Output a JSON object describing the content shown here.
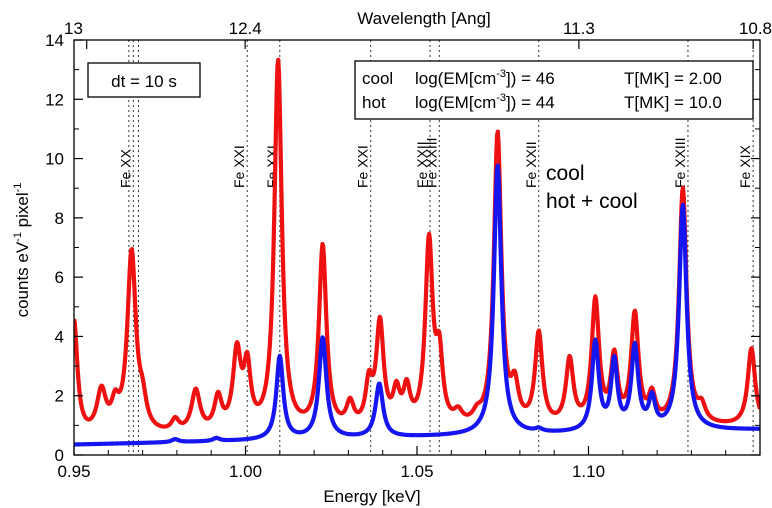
{
  "chart_data": {
    "type": "line",
    "xlabel": "Energy [keV]",
    "ylabel": "counts eV",
    "ylabel_sup1": "-1",
    "ylabel_mid": " pixel",
    "ylabel_sup2": "-1",
    "top_axis_label": "Wavelength [Ang]",
    "xlim": [
      0.95,
      1.15
    ],
    "ylim": [
      0,
      14
    ],
    "x_ticks": [
      0.95,
      1.0,
      1.05,
      1.1
    ],
    "x_tick_labels": [
      "0.95",
      "1.00",
      "1.05",
      "1.10"
    ],
    "y_ticks": [
      0,
      2,
      4,
      6,
      8,
      10,
      12,
      14
    ],
    "y_tick_labels": [
      "0",
      "2",
      "4",
      "6",
      "8",
      "10",
      "12",
      "14"
    ],
    "top_ticks": [
      {
        "label": "13",
        "energy": 0.9537
      },
      {
        "label": "12.4",
        "energy": 0.9999
      },
      {
        "label": "11.3",
        "energy": 1.0972
      },
      {
        "label": "10.8",
        "energy": 1.148
      }
    ],
    "annotation_box": "dt = 10 s",
    "info_box": [
      {
        "name": "cool",
        "em_pre": "log(EM[cm",
        "em_sup": "-3",
        "em_post": "]) = 46",
        "temp": "T[MK] = 2.00"
      },
      {
        "name": "hot",
        "em_pre": "log(EM[cm",
        "em_sup": "-3",
        "em_post": "]) = 44",
        "temp": "T[MK] = 10.0"
      }
    ],
    "legend": [
      {
        "label": "cool",
        "color": "#1515f0"
      },
      {
        "label": "hot + cool",
        "color": "#ee1111"
      }
    ],
    "line_markers": [
      {
        "label": "Fe XX",
        "energy": 0.9673
      },
      {
        "label": "",
        "energy": 0.966
      },
      {
        "label": "",
        "energy": 0.9688
      },
      {
        "label": "Fe XXI",
        "energy": 1.0005
      },
      {
        "label": "Fe XXI",
        "energy": 1.01
      },
      {
        "label": "Fe XXI",
        "energy": 1.0365
      },
      {
        "label": "Fe XXII",
        "energy": 1.0538
      },
      {
        "label": "Fe XXIII",
        "energy": 1.0565
      },
      {
        "label": "Fe XXII",
        "energy": 1.0855
      },
      {
        "label": "Fe XXIII",
        "energy": 1.129
      },
      {
        "label": "Fe XIX",
        "energy": 1.148
      }
    ],
    "series": [
      {
        "name": "hot + cool",
        "color": "#ee1111",
        "baseline": [
          [
            0.95,
            0.55
          ],
          [
            1.15,
            0.95
          ]
        ],
        "peaks": [
          [
            0.95,
            3.9,
            0.0012
          ],
          [
            0.958,
            1.4,
            0.0016
          ],
          [
            0.962,
            0.8,
            0.0013
          ],
          [
            0.9668,
            6.1,
            0.0015
          ],
          [
            0.97,
            0.8,
            0.0013
          ],
          [
            0.9795,
            0.4,
            0.0013
          ],
          [
            0.9855,
            1.4,
            0.0015
          ],
          [
            0.992,
            1.1,
            0.0013
          ],
          [
            0.9975,
            2.6,
            0.0014
          ],
          [
            1.0005,
            2.0,
            0.0012
          ],
          [
            1.0095,
            12.5,
            0.0013
          ],
          [
            1.0225,
            6.2,
            0.0013
          ],
          [
            1.0305,
            0.8,
            0.0013
          ],
          [
            1.036,
            1.4,
            0.0012
          ],
          [
            1.0392,
            3.5,
            0.0013
          ],
          [
            1.044,
            1.1,
            0.0012
          ],
          [
            1.047,
            1.2,
            0.0012
          ],
          [
            1.0535,
            6.2,
            0.0013
          ],
          [
            1.0565,
            2.2,
            0.0012
          ],
          [
            1.062,
            0.4,
            0.0015
          ],
          [
            1.0675,
            0.3,
            0.0015
          ],
          [
            1.0735,
            9.9,
            0.0013
          ],
          [
            1.0785,
            1.2,
            0.0013
          ],
          [
            1.0855,
            3.1,
            0.0013
          ],
          [
            1.0945,
            2.2,
            0.0013
          ],
          [
            1.102,
            4.2,
            0.0013
          ],
          [
            1.1075,
            2.2,
            0.0012
          ],
          [
            1.1135,
            3.7,
            0.0013
          ],
          [
            1.1185,
            0.9,
            0.0012
          ],
          [
            1.1275,
            8.0,
            0.0013
          ],
          [
            1.133,
            0.5,
            0.0013
          ],
          [
            1.1475,
            2.6,
            0.0013
          ]
        ]
      },
      {
        "name": "cool",
        "color": "#1515f0",
        "baseline": [
          [
            0.95,
            0.35
          ],
          [
            1.15,
            0.85
          ]
        ],
        "peaks": [
          [
            0.9795,
            0.1,
            0.0012
          ],
          [
            0.9915,
            0.1,
            0.0012
          ],
          [
            1.01,
            2.8,
            0.0012
          ],
          [
            1.0225,
            3.4,
            0.0013
          ],
          [
            1.039,
            1.8,
            0.0013
          ],
          [
            1.0735,
            9.1,
            0.0013
          ],
          [
            1.0855,
            0.1,
            0.0012
          ],
          [
            1.102,
            3.0,
            0.0012
          ],
          [
            1.1075,
            2.3,
            0.0011
          ],
          [
            1.1135,
            2.8,
            0.0012
          ],
          [
            1.1185,
            1.0,
            0.0011
          ],
          [
            1.1275,
            7.6,
            0.0013
          ]
        ]
      }
    ]
  }
}
